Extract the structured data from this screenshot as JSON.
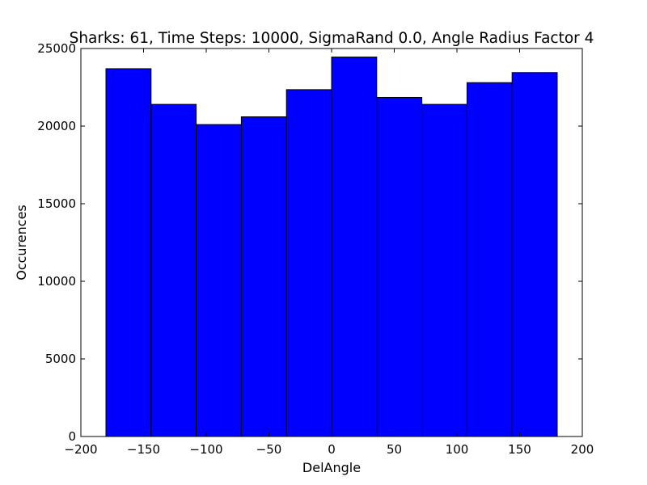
{
  "chart_data": {
    "type": "bar",
    "title": "Sharks: 61, Time Steps: 10000, SigmaRand 0.0, Angle Radius Factor 4",
    "xlabel": "DelAngle",
    "ylabel": "Occurences",
    "xlim": [
      -200,
      200
    ],
    "ylim": [
      0,
      25000
    ],
    "xticks": [
      -200,
      -150,
      -100,
      -50,
      0,
      50,
      100,
      150,
      200
    ],
    "yticks": [
      0,
      5000,
      10000,
      15000,
      20000,
      25000
    ],
    "xtick_labels": [
      "−200",
      "−150",
      "−100",
      "−50",
      "0",
      "50",
      "100",
      "150",
      "200"
    ],
    "ytick_labels": [
      "0",
      "5000",
      "10000",
      "15000",
      "20000",
      "25000"
    ],
    "bin_edges": [
      -180,
      -144,
      -108,
      -72,
      -36,
      0,
      36,
      72,
      108,
      144,
      180
    ],
    "values": [
      23700,
      21400,
      20100,
      20600,
      22350,
      24450,
      21850,
      21400,
      22800,
      23450
    ],
    "grid": false,
    "bar_color": "#0000ff",
    "edge_color": "#000000"
  }
}
